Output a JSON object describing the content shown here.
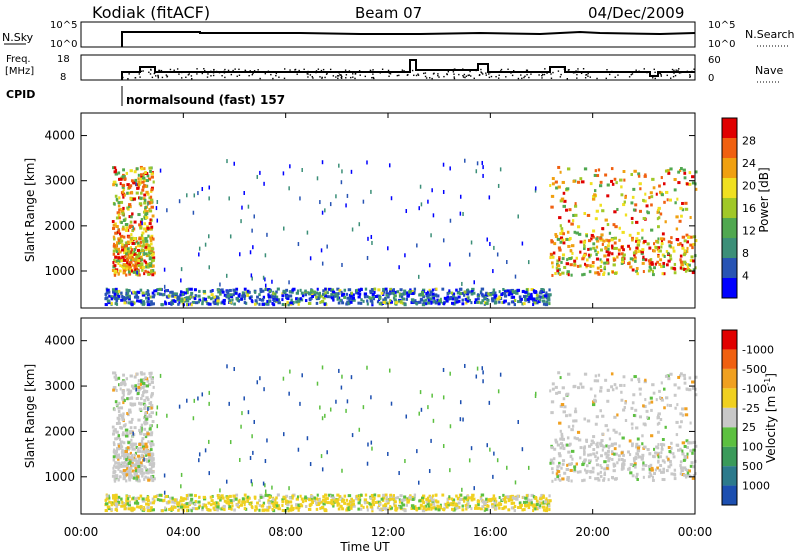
{
  "header": {
    "station": "Kodiak (fitACF)",
    "beam": "Beam 07",
    "date": "04/Dec/2009"
  },
  "top_panels": {
    "nsky_label": "N.Sky",
    "nsky_ticks": [
      "10^5",
      "10^0"
    ],
    "nsearch_label": "N.Search",
    "nsearch_ticks": [
      "10^5",
      "10^0"
    ],
    "freq_label_1": "Freq.",
    "freq_label_2": "[MHz]",
    "freq_ticks": [
      "18",
      "8"
    ],
    "nave_label": "Nave",
    "nave_ticks": [
      "60",
      "0"
    ],
    "cpid_label": "CPID",
    "cpid_text": "normalsound (fast) 157"
  },
  "power_colorbar": {
    "title": "Power [dB]",
    "ticks": [
      "4",
      "8",
      "12",
      "16",
      "20",
      "24",
      "28"
    ],
    "colors": [
      "#0000ff",
      "#2854b4",
      "#3c8f78",
      "#50a850",
      "#a0c828",
      "#f0e020",
      "#f0a010",
      "#f06010",
      "#e00000"
    ]
  },
  "velocity_colorbar": {
    "title": "Velocity [m s",
    "title_sup": "-1",
    "title_end": "]",
    "ticks": [
      "1000",
      "500",
      "100",
      "25",
      "-25",
      "-100",
      "-500",
      "-1000"
    ],
    "colors": [
      "#1c4fb0",
      "#2c7a8c",
      "#3a9a5a",
      "#5cc040",
      "#c8c8c8",
      "#f0d020",
      "#f0a020",
      "#f06010",
      "#e00000"
    ]
  },
  "chart_data": {
    "type": "heatmap",
    "xlabel": "Time UT",
    "ylabel": "Slant Range [km]",
    "x_ticks": [
      "00:00",
      "04:00",
      "08:00",
      "12:00",
      "16:00",
      "20:00",
      "00:00"
    ],
    "y_ticks": [
      "1000",
      "2000",
      "3000",
      "4000"
    ],
    "xlim_hours": [
      0,
      24
    ],
    "ylim_km": [
      180,
      4500
    ],
    "panels": [
      {
        "name": "Power [dB]",
        "regions": [
          {
            "t": [
              1.2,
              2.8
            ],
            "r": [
              900,
              3300
            ],
            "level_db": "14-28"
          },
          {
            "t": [
              0.9,
              18.3
            ],
            "r": [
              250,
              600
            ],
            "level_db": "4-16"
          },
          {
            "t": [
              18.3,
              24
            ],
            "r": [
              900,
              3300
            ],
            "level_db": "12-28"
          }
        ]
      },
      {
        "name": "Velocity",
        "regions": [
          {
            "t": [
              1.2,
              2.8
            ],
            "r": [
              900,
              3300
            ],
            "level_ms": "-25 to 25"
          },
          {
            "t": [
              0.9,
              18.3
            ],
            "r": [
              250,
              600
            ],
            "level_ms": "-100 to 25"
          },
          {
            "t": [
              18.3,
              24
            ],
            "r": [
              900,
              3300
            ],
            "level_ms": "-25 to 100"
          }
        ]
      }
    ]
  }
}
